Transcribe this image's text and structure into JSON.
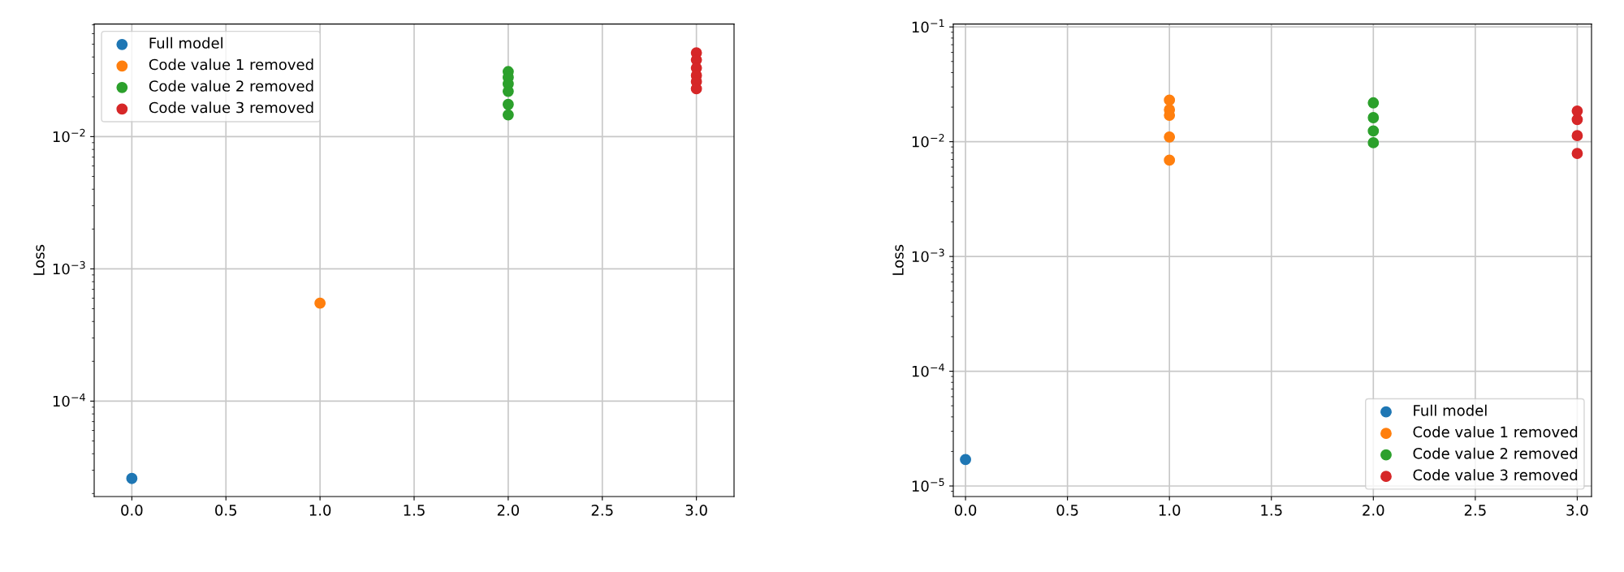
{
  "chart_data": [
    {
      "type": "scatter",
      "ylabel": "Loss",
      "log": "y",
      "grid": true,
      "legend": "top left",
      "marker": "circle",
      "xlim": [
        -0.2,
        3.2
      ],
      "xticks": [
        {
          "value": 0,
          "label": "0.0"
        },
        0.5,
        {
          "value": 1,
          "label": "1.0"
        },
        1.5,
        {
          "value": 2,
          "label": "2.0"
        },
        2.5,
        {
          "value": 3,
          "label": "3.0"
        }
      ],
      "ylim": [
        1.9e-05,
        0.071
      ],
      "yticks": [
        {
          "value": 0.0001,
          "label": "10$^{−4}$"
        },
        {
          "value": 0.001,
          "label": "10$^{−3}$"
        },
        {
          "value": 0.01,
          "label": "10$^{−2}$"
        }
      ],
      "series": [
        {
          "name": "Full model",
          "color": "#1f77b4",
          "x": [
            0
          ],
          "values": [
            2.6e-05
          ]
        },
        {
          "name": "Code value 1 removed",
          "color": "#ff7f0e",
          "x": [
            1
          ],
          "values": [
            0.00055
          ]
        },
        {
          "name": "Code value 2 removed",
          "color": "#2ca02c",
          "x": [
            2,
            2,
            2,
            2,
            2,
            2
          ],
          "values": [
            0.031,
            0.028,
            0.025,
            0.022,
            0.0175,
            0.0146
          ]
        },
        {
          "name": "Code value 3 removed",
          "color": "#d62728",
          "x": [
            3,
            3,
            3,
            3,
            3,
            3
          ],
          "values": [
            0.043,
            0.038,
            0.033,
            0.029,
            0.026,
            0.023
          ]
        }
      ]
    },
    {
      "type": "scatter",
      "ylabel": "Loss",
      "log": "y",
      "grid": true,
      "legend": "bottom right",
      "marker": "circle",
      "xlim": [
        -0.06,
        3.07
      ],
      "xticks": [
        {
          "value": 0,
          "label": "0.0"
        },
        0.5,
        {
          "value": 1,
          "label": "1.0"
        },
        1.5,
        {
          "value": 2,
          "label": "2.0"
        },
        2.5,
        {
          "value": 3,
          "label": "3.0"
        }
      ],
      "ylim": [
        8.1e-06,
        0.106
      ],
      "yticks": [
        {
          "value": 1e-05,
          "label": "10$^{−5}$"
        },
        {
          "value": 0.0001,
          "label": "10$^{−4}$"
        },
        {
          "value": 0.001,
          "label": "10$^{−3}$"
        },
        {
          "value": 0.01,
          "label": "10$^{−2}$"
        },
        {
          "value": 0.1,
          "label": "10$^{−1}$"
        }
      ],
      "series": [
        {
          "name": "Full model",
          "color": "#1f77b4",
          "x": [
            0
          ],
          "values": [
            1.7e-05
          ]
        },
        {
          "name": "Code value 1 removed",
          "color": "#ff7f0e",
          "x": [
            1,
            1,
            1,
            1,
            1
          ],
          "values": [
            0.023,
            0.019,
            0.017,
            0.011,
            0.0069
          ]
        },
        {
          "name": "Code value 2 removed",
          "color": "#2ca02c",
          "x": [
            2,
            2,
            2,
            2
          ],
          "values": [
            0.0218,
            0.0162,
            0.0124,
            0.0098
          ]
        },
        {
          "name": "Code value 3 removed",
          "color": "#d62728",
          "x": [
            3,
            3,
            3,
            3
          ],
          "values": [
            0.0185,
            0.0156,
            0.0113,
            0.0079
          ]
        }
      ]
    }
  ]
}
